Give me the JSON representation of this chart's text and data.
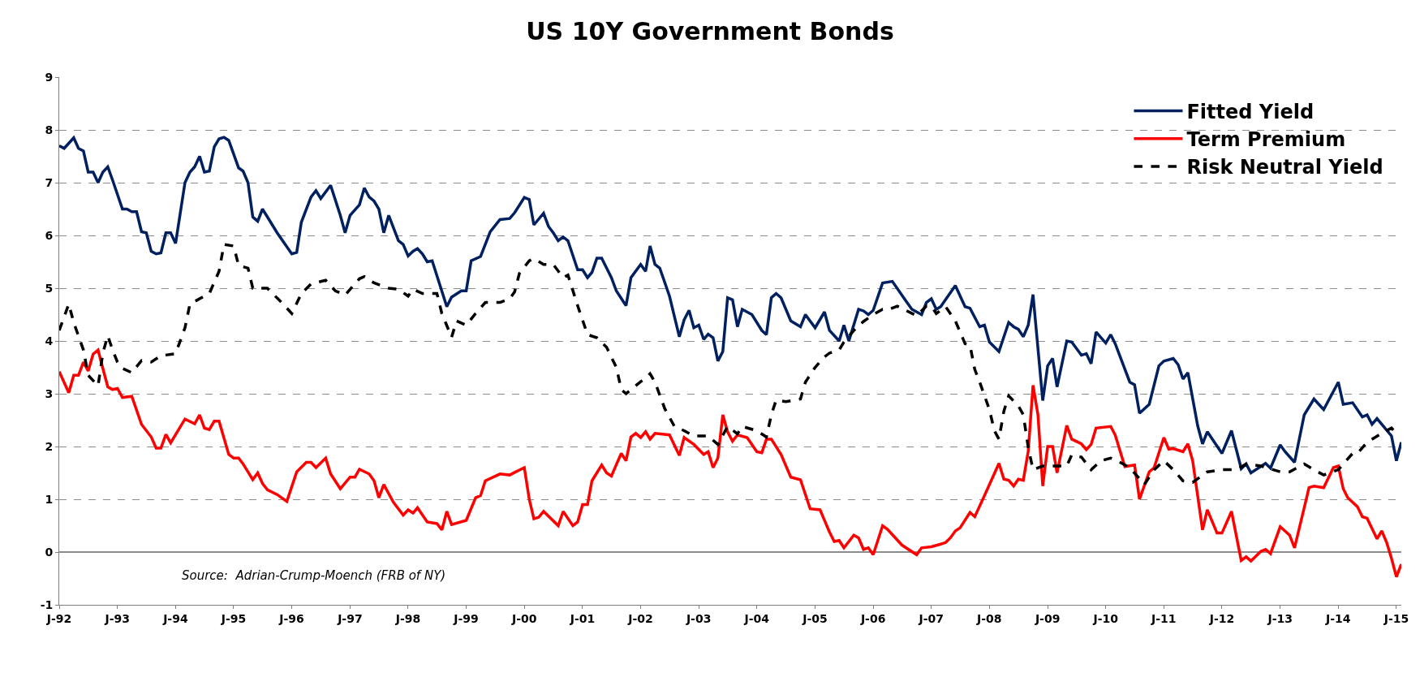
{
  "chart_data": {
    "type": "line",
    "title": "US 10Y Government Bonds",
    "annotations": [
      "Source:  Adrian-Crump-Moench (FRB of NY)"
    ],
    "xlim": [
      "1992-01",
      "2015-02"
    ],
    "xticks": [
      {
        "value": "1992-01",
        "label": "J-92"
      },
      {
        "value": "1993-01",
        "label": "J-93"
      },
      {
        "value": "1994-01",
        "label": "J-94"
      },
      {
        "value": "1995-01",
        "label": "J-95"
      },
      {
        "value": "1996-01",
        "label": "J-96"
      },
      {
        "value": "1997-01",
        "label": "J-97"
      },
      {
        "value": "1998-01",
        "label": "J-98"
      },
      {
        "value": "1999-01",
        "label": "J-99"
      },
      {
        "value": "2000-01",
        "label": "J-00"
      },
      {
        "value": "2001-01",
        "label": "J-01"
      },
      {
        "value": "2002-01",
        "label": "J-02"
      },
      {
        "value": "2003-01",
        "label": "J-03"
      },
      {
        "value": "2004-01",
        "label": "J-04"
      },
      {
        "value": "2005-01",
        "label": "J-05"
      },
      {
        "value": "2006-01",
        "label": "J-06"
      },
      {
        "value": "2007-01",
        "label": "J-07"
      },
      {
        "value": "2008-01",
        "label": "J-08"
      },
      {
        "value": "2009-01",
        "label": "J-09"
      },
      {
        "value": "2010-01",
        "label": "J-10"
      },
      {
        "value": "2011-01",
        "label": "J-11"
      },
      {
        "value": "2012-01",
        "label": "J-12"
      },
      {
        "value": "2013-01",
        "label": "J-13"
      },
      {
        "value": "2014-01",
        "label": "J-14"
      },
      {
        "value": "2015-01",
        "label": "J-15"
      }
    ],
    "ylim": [
      -1,
      9
    ],
    "yticks": [
      -1,
      0,
      1,
      2,
      3,
      4,
      5,
      6,
      7,
      8,
      9
    ],
    "grid": "y",
    "legend": "top right",
    "marker": "none",
    "series": [
      {
        "name": "Fitted Yield",
        "color": "#002060",
        "line_style": "solid",
        "x": [
          "1992-01",
          "1992-02",
          "1992-04",
          "1992-05",
          "1992-06",
          "1992-07",
          "1992-08",
          "1992-09",
          "1992-10",
          "1992-11",
          "1992-12",
          "1993-02",
          "1993-03",
          "1993-04",
          "1993-05",
          "1993-06",
          "1993-07",
          "1993-08",
          "1993-09",
          "1993-10",
          "1993-11",
          "1993-12",
          "1994-01",
          "1994-03",
          "1994-04",
          "1994-05",
          "1994-06",
          "1994-07",
          "1994-08",
          "1994-09",
          "1994-10",
          "1994-11",
          "1994-12",
          "1995-02",
          "1995-03",
          "1995-04",
          "1995-05",
          "1995-06",
          "1995-07",
          "1995-08",
          "1995-10",
          "1996-01",
          "1996-02",
          "1996-03",
          "1996-05",
          "1996-06",
          "1996-07",
          "1996-09",
          "1996-11",
          "1996-12",
          "1997-01",
          "1997-03",
          "1997-04",
          "1997-05",
          "1997-06",
          "1997-07",
          "1997-08",
          "1997-09",
          "1997-11",
          "1997-12",
          "1998-01",
          "1998-02",
          "1998-03",
          "1998-04",
          "1998-05",
          "1998-06",
          "1998-09",
          "1998-10",
          "1998-12",
          "1999-01",
          "1999-02",
          "1999-04",
          "1999-06",
          "1999-08",
          "1999-10",
          "1999-11",
          "2000-01",
          "2000-02",
          "2000-03",
          "2000-05",
          "2000-06",
          "2000-07",
          "2000-08",
          "2000-09",
          "2000-10",
          "2000-12",
          "2001-01",
          "2001-02",
          "2001-03",
          "2001-04",
          "2001-05",
          "2001-07",
          "2001-08",
          "2001-10",
          "2001-11",
          "2002-01",
          "2002-02",
          "2002-03",
          "2002-04",
          "2002-05",
          "2002-07",
          "2002-09",
          "2002-10",
          "2002-11",
          "2002-12",
          "2003-01",
          "2003-02",
          "2003-03",
          "2003-04",
          "2003-05",
          "2003-06",
          "2003-07",
          "2003-08",
          "2003-09",
          "2003-10",
          "2003-12",
          "2004-02",
          "2004-03",
          "2004-04",
          "2004-05",
          "2004-06",
          "2004-08",
          "2004-10",
          "2004-11",
          "2005-01",
          "2005-03",
          "2005-04",
          "2005-06",
          "2005-07",
          "2005-08",
          "2005-10",
          "2005-11",
          "2005-12",
          "2006-01",
          "2006-03",
          "2006-05",
          "2006-08",
          "2006-09",
          "2006-11",
          "2006-12",
          "2007-01",
          "2007-02",
          "2007-03",
          "2007-06",
          "2007-08",
          "2007-09",
          "2007-11",
          "2007-12",
          "2008-01",
          "2008-03",
          "2008-05",
          "2008-06",
          "2008-07",
          "2008-08",
          "2008-09",
          "2008-10",
          "2008-12",
          "2009-01",
          "2009-02",
          "2009-03",
          "2009-05",
          "2009-06",
          "2009-08",
          "2009-09",
          "2009-10",
          "2009-11",
          "2010-01",
          "2010-02",
          "2010-03",
          "2010-06",
          "2010-07",
          "2010-08",
          "2010-10",
          "2010-12",
          "2011-01",
          "2011-03",
          "2011-04",
          "2011-05",
          "2011-06",
          "2011-08",
          "2011-09",
          "2011-10",
          "2012-01",
          "2012-03",
          "2012-05",
          "2012-06",
          "2012-07",
          "2012-10",
          "2012-11",
          "2013-01",
          "2013-02",
          "2013-04",
          "2013-06",
          "2013-08",
          "2013-10",
          "2014-01",
          "2014-02",
          "2014-04",
          "2014-06",
          "2014-07",
          "2014-08",
          "2014-09",
          "2014-12",
          "2015-01",
          "2015-02"
        ],
        "values": [
          7.7,
          7.65,
          7.85,
          7.65,
          7.6,
          7.2,
          7.2,
          7.0,
          7.2,
          7.3,
          7.05,
          6.5,
          6.5,
          6.45,
          6.45,
          6.07,
          6.05,
          5.7,
          5.65,
          5.67,
          6.05,
          6.05,
          5.85,
          7.0,
          7.2,
          7.3,
          7.5,
          7.2,
          7.22,
          7.68,
          7.83,
          7.86,
          7.8,
          7.28,
          7.22,
          7.0,
          6.35,
          6.27,
          6.5,
          6.35,
          6.05,
          5.65,
          5.68,
          6.25,
          6.73,
          6.85,
          6.7,
          6.95,
          6.38,
          6.05,
          6.38,
          6.58,
          6.9,
          6.73,
          6.65,
          6.5,
          6.05,
          6.38,
          5.9,
          5.83,
          5.61,
          5.7,
          5.75,
          5.65,
          5.5,
          5.52,
          4.65,
          4.83,
          4.95,
          4.95,
          5.52,
          5.6,
          6.07,
          6.3,
          6.32,
          6.43,
          6.72,
          6.68,
          6.2,
          6.42,
          6.17,
          6.05,
          5.9,
          5.97,
          5.9,
          5.35,
          5.35,
          5.2,
          5.3,
          5.57,
          5.57,
          5.2,
          4.95,
          4.67,
          5.2,
          5.45,
          5.32,
          5.8,
          5.45,
          5.38,
          4.85,
          4.08,
          4.4,
          4.58,
          4.25,
          4.3,
          4.03,
          4.13,
          4.06,
          3.62,
          3.8,
          4.82,
          4.78,
          4.27,
          4.6,
          4.5,
          4.2,
          4.12,
          4.82,
          4.9,
          4.82,
          4.38,
          4.27,
          4.5,
          4.25,
          4.55,
          4.2,
          4.0,
          4.3,
          4.0,
          4.6,
          4.57,
          4.5,
          4.58,
          5.1,
          5.13,
          4.73,
          4.6,
          4.5,
          4.73,
          4.8,
          4.6,
          4.65,
          5.05,
          4.65,
          4.62,
          4.27,
          4.3,
          3.98,
          3.8,
          4.35,
          4.27,
          4.22,
          4.08,
          4.3,
          4.88,
          2.87,
          3.53,
          3.67,
          3.13,
          4.0,
          3.98,
          3.73,
          3.76,
          3.57,
          4.17,
          3.96,
          4.12,
          3.95,
          3.22,
          3.17,
          2.63,
          2.8,
          3.53,
          3.62,
          3.67,
          3.55,
          3.28,
          3.4,
          2.4,
          2.05,
          2.28,
          1.87,
          2.3,
          1.58,
          1.67,
          1.5,
          1.68,
          1.59,
          2.03,
          1.9,
          1.7,
          2.6,
          2.9,
          2.7,
          3.22,
          2.8,
          2.83,
          2.56,
          2.6,
          2.42,
          2.53,
          2.2,
          1.73,
          2.08
        ]
      },
      {
        "name": "Term Premium",
        "color": "#ff0000",
        "line_style": "solid",
        "x": [
          "1992-01",
          "1992-03",
          "1992-04",
          "1992-05",
          "1992-06",
          "1992-07",
          "1992-08",
          "1992-09",
          "1992-10",
          "1992-11",
          "1992-12",
          "1993-01",
          "1993-02",
          "1993-04",
          "1993-06",
          "1993-08",
          "1993-09",
          "1993-10",
          "1993-11",
          "1993-12",
          "1994-03",
          "1994-05",
          "1994-06",
          "1994-07",
          "1994-08",
          "1994-09",
          "1994-10",
          "1994-12",
          "1995-01",
          "1995-02",
          "1995-03",
          "1995-05",
          "1995-06",
          "1995-07",
          "1995-08",
          "1995-10",
          "1995-12",
          "1996-02",
          "1996-04",
          "1996-05",
          "1996-06",
          "1996-08",
          "1996-09",
          "1996-11",
          "1997-01",
          "1997-02",
          "1997-03",
          "1997-05",
          "1997-06",
          "1997-07",
          "1997-08",
          "1997-10",
          "1997-12",
          "1998-01",
          "1998-02",
          "1998-03",
          "1998-05",
          "1998-07",
          "1998-08",
          "1998-09",
          "1998-10",
          "1999-01",
          "1999-03",
          "1999-04",
          "1999-05",
          "1999-08",
          "1999-10",
          "1999-11",
          "2000-01",
          "2000-02",
          "2000-03",
          "2000-04",
          "2000-05",
          "2000-08",
          "2000-09",
          "2000-11",
          "2000-12",
          "2001-01",
          "2001-02",
          "2001-03",
          "2001-05",
          "2001-06",
          "2001-07",
          "2001-09",
          "2001-10",
          "2001-11",
          "2001-12",
          "2002-01",
          "2002-02",
          "2002-03",
          "2002-04",
          "2002-07",
          "2002-09",
          "2002-10",
          "2002-12",
          "2003-02",
          "2003-03",
          "2003-04",
          "2003-05",
          "2003-06",
          "2003-07",
          "2003-08",
          "2003-09",
          "2003-11",
          "2004-01",
          "2004-02",
          "2004-03",
          "2004-04",
          "2004-06",
          "2004-08",
          "2004-10",
          "2004-12",
          "2005-02",
          "2005-04",
          "2005-05",
          "2005-06",
          "2005-07",
          "2005-09",
          "2005-10",
          "2005-11",
          "2005-12",
          "2006-01",
          "2006-03",
          "2006-04",
          "2006-07",
          "2006-10",
          "2006-11",
          "2007-01",
          "2007-03",
          "2007-04",
          "2007-05",
          "2007-06",
          "2007-07",
          "2007-09",
          "2007-10",
          "2007-12",
          "2008-03",
          "2008-04",
          "2008-05",
          "2008-06",
          "2008-07",
          "2008-08",
          "2008-09",
          "2008-10",
          "2008-11",
          "2008-12",
          "2009-01",
          "2009-02",
          "2009-03",
          "2009-05",
          "2009-06",
          "2009-08",
          "2009-09",
          "2009-10",
          "2009-11",
          "2010-02",
          "2010-03",
          "2010-05",
          "2010-07",
          "2010-08",
          "2010-10",
          "2010-11",
          "2011-01",
          "2011-02",
          "2011-03",
          "2011-05",
          "2011-06",
          "2011-07",
          "2011-09",
          "2011-10",
          "2011-12",
          "2012-01",
          "2012-03",
          "2012-05",
          "2012-06",
          "2012-07",
          "2012-09",
          "2012-10",
          "2012-11",
          "2013-01",
          "2013-03",
          "2013-04",
          "2013-06",
          "2013-07",
          "2013-08",
          "2013-10",
          "2013-12",
          "2014-01",
          "2014-02",
          "2014-03",
          "2014-05",
          "2014-06",
          "2014-07",
          "2014-09",
          "2014-10",
          "2014-11",
          "2014-12",
          "2015-01",
          "2015-02"
        ],
        "values": [
          3.42,
          3.02,
          3.35,
          3.35,
          3.6,
          3.43,
          3.75,
          3.83,
          3.48,
          3.13,
          3.08,
          3.1,
          2.93,
          2.95,
          2.42,
          2.18,
          1.97,
          1.97,
          2.23,
          2.07,
          2.52,
          2.43,
          2.6,
          2.35,
          2.32,
          2.48,
          2.48,
          1.85,
          1.78,
          1.78,
          1.67,
          1.37,
          1.5,
          1.3,
          1.18,
          1.09,
          0.96,
          1.52,
          1.7,
          1.7,
          1.6,
          1.78,
          1.48,
          1.2,
          1.42,
          1.42,
          1.57,
          1.48,
          1.35,
          1.03,
          1.28,
          0.94,
          0.7,
          0.8,
          0.74,
          0.84,
          0.57,
          0.54,
          0.42,
          0.77,
          0.52,
          0.6,
          1.03,
          1.07,
          1.35,
          1.48,
          1.46,
          1.51,
          1.6,
          1.0,
          0.63,
          0.66,
          0.77,
          0.5,
          0.77,
          0.5,
          0.57,
          0.9,
          0.9,
          1.35,
          1.65,
          1.5,
          1.44,
          1.87,
          1.73,
          2.18,
          2.25,
          2.17,
          2.28,
          2.14,
          2.25,
          2.22,
          1.83,
          2.17,
          2.04,
          1.85,
          1.9,
          1.6,
          1.78,
          2.6,
          2.28,
          2.1,
          2.22,
          2.17,
          1.9,
          1.88,
          2.14,
          2.14,
          1.85,
          1.42,
          1.37,
          0.82,
          0.8,
          0.38,
          0.2,
          0.22,
          0.08,
          0.32,
          0.27,
          0.05,
          0.08,
          -0.05,
          0.5,
          0.43,
          0.13,
          -0.05,
          0.08,
          0.1,
          0.15,
          0.18,
          0.27,
          0.4,
          0.46,
          0.75,
          0.67,
          1.07,
          1.68,
          1.38,
          1.36,
          1.25,
          1.38,
          1.36,
          1.91,
          3.16,
          2.6,
          1.25,
          2.0,
          2.0,
          1.5,
          2.4,
          2.14,
          2.05,
          1.94,
          2.04,
          2.35,
          2.38,
          2.22,
          1.62,
          1.65,
          1.0,
          1.52,
          1.6,
          2.17,
          1.95,
          1.96,
          1.9,
          2.05,
          1.73,
          0.42,
          0.8,
          0.36,
          0.36,
          0.77,
          -0.16,
          -0.09,
          -0.17,
          0.01,
          0.05,
          -0.03,
          0.48,
          0.32,
          0.08,
          0.84,
          1.22,
          1.25,
          1.22,
          1.6,
          1.63,
          1.2,
          1.03,
          0.86,
          0.67,
          0.64,
          0.25,
          0.4,
          0.18,
          -0.12,
          -0.47,
          -0.23
        ]
      },
      {
        "name": "Risk Neutral Yield",
        "color": "#000000",
        "line_style": "dashed",
        "x": [
          "1992-01",
          "1992-03",
          "1992-04",
          "1992-06",
          "1992-07",
          "1992-09",
          "1992-10",
          "1992-11",
          "1992-12",
          "1993-01",
          "1993-02",
          "1993-04",
          "1993-06",
          "1993-08",
          "1993-10",
          "1994-01",
          "1994-03",
          "1994-04",
          "1994-08",
          "1994-10",
          "1994-11",
          "1995-01",
          "1995-02",
          "1995-04",
          "1995-05",
          "1995-08",
          "1995-11",
          "1996-01",
          "1996-03",
          "1996-05",
          "1996-08",
          "1996-10",
          "1996-12",
          "1997-03",
          "1997-04",
          "1997-06",
          "1997-09",
          "1997-11",
          "1998-01",
          "1998-02",
          "1998-04",
          "1998-07",
          "1998-08",
          "1998-10",
          "1998-11",
          "1999-01",
          "1999-03",
          "1999-05",
          "1999-08",
          "1999-10",
          "1999-11",
          "1999-12",
          "2000-02",
          "2000-03",
          "2000-05",
          "2000-07",
          "2000-09",
          "2000-10",
          "2000-12",
          "2001-02",
          "2001-04",
          "2001-06",
          "2001-08",
          "2001-09",
          "2001-10",
          "2002-01",
          "2002-02",
          "2002-03",
          "2002-04",
          "2002-06",
          "2002-08",
          "2002-10",
          "2002-12",
          "2003-03",
          "2003-05",
          "2003-07",
          "2003-09",
          "2003-10",
          "2004-01",
          "2004-03",
          "2004-04",
          "2004-05",
          "2004-07",
          "2004-10",
          "2004-11",
          "2005-01",
          "2005-03",
          "2005-04",
          "2005-06",
          "2005-07",
          "2005-09",
          "2005-11",
          "2006-01",
          "2006-03",
          "2006-04",
          "2006-06",
          "2006-08",
          "2006-10",
          "2006-12",
          "2007-01",
          "2007-02",
          "2007-04",
          "2007-06",
          "2007-08",
          "2007-09",
          "2007-10",
          "2007-11",
          "2008-01",
          "2008-02",
          "2008-03",
          "2008-04",
          "2008-05",
          "2008-07",
          "2008-08",
          "2008-09",
          "2008-10",
          "2008-12",
          "2009-03",
          "2009-05",
          "2009-06",
          "2009-08",
          "2009-10",
          "2009-12",
          "2010-02",
          "2010-04",
          "2010-06",
          "2010-09",
          "2010-11",
          "2011-01",
          "2011-03",
          "2011-05",
          "2011-07",
          "2011-10",
          "2012-01",
          "2012-04",
          "2012-06",
          "2012-09",
          "2013-01",
          "2013-03",
          "2013-06",
          "2013-08",
          "2013-10",
          "2014-01",
          "2014-04",
          "2014-05",
          "2014-07",
          "2014-10",
          "2014-12",
          "2015-01"
        ],
        "values": [
          4.2,
          4.7,
          4.35,
          3.83,
          3.35,
          3.15,
          3.77,
          4.1,
          3.83,
          3.6,
          3.48,
          3.4,
          3.63,
          3.6,
          3.72,
          3.76,
          4.25,
          4.7,
          4.9,
          5.32,
          5.83,
          5.8,
          5.43,
          5.38,
          5.0,
          5.0,
          4.72,
          4.52,
          4.9,
          5.08,
          5.15,
          4.95,
          4.87,
          5.18,
          5.22,
          5.1,
          5.0,
          4.98,
          4.85,
          4.98,
          4.9,
          4.9,
          4.52,
          4.07,
          4.38,
          4.3,
          4.52,
          4.73,
          4.73,
          4.8,
          4.93,
          5.28,
          5.52,
          5.56,
          5.45,
          5.45,
          5.2,
          5.25,
          4.67,
          4.12,
          4.06,
          3.88,
          3.5,
          3.08,
          3.0,
          3.23,
          3.29,
          3.38,
          3.22,
          2.72,
          2.38,
          2.3,
          2.2,
          2.2,
          2.04,
          2.38,
          2.24,
          2.38,
          2.3,
          2.18,
          2.6,
          2.88,
          2.85,
          2.9,
          3.22,
          3.5,
          3.7,
          3.77,
          3.83,
          3.98,
          4.2,
          4.37,
          4.5,
          4.6,
          4.59,
          4.66,
          4.57,
          4.48,
          4.66,
          4.66,
          4.52,
          4.65,
          4.38,
          3.95,
          3.92,
          3.46,
          3.22,
          2.7,
          2.3,
          2.14,
          2.67,
          2.96,
          2.77,
          2.6,
          1.98,
          1.56,
          1.63,
          1.63,
          1.63,
          1.84,
          1.8,
          1.56,
          1.73,
          1.78,
          1.7,
          1.6,
          1.28,
          1.56,
          1.73,
          1.56,
          1.35,
          1.32,
          1.52,
          1.56,
          1.56,
          1.67,
          1.63,
          1.52,
          1.52,
          1.67,
          1.56,
          1.46,
          1.56,
          1.87,
          1.87,
          2.08,
          2.25,
          2.35,
          2.25
        ]
      }
    ]
  }
}
